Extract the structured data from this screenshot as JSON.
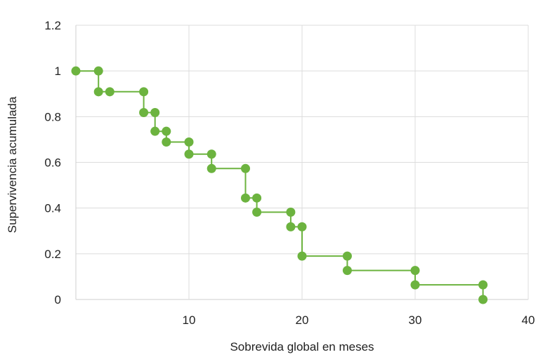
{
  "chart_data": {
    "type": "line",
    "subtype": "kaplan-meier-step",
    "title": "",
    "xlabel": "Sobrevida global en meses",
    "ylabel": "Supervivencia acumulada",
    "xlim": [
      0,
      40
    ],
    "ylim": [
      0,
      1.2
    ],
    "x_ticks": [
      10,
      20,
      30,
      40
    ],
    "x_tick_labels": [
      "10",
      "20",
      "30",
      "40"
    ],
    "y_ticks": [
      0,
      0.2,
      0.4,
      0.6,
      0.8,
      1,
      1.2
    ],
    "y_tick_labels": [
      "0",
      "0.2",
      "0.4",
      "0.6",
      "0.8",
      "1",
      "1.2"
    ],
    "grid": true,
    "legend": "none",
    "color": "#6cb33f",
    "series": [
      {
        "step_points": [
          [
            0,
            1.0
          ],
          [
            2,
            1.0
          ],
          [
            2,
            0.909
          ],
          [
            3,
            0.909
          ],
          [
            6,
            0.909
          ],
          [
            6,
            0.818
          ],
          [
            7,
            0.818
          ],
          [
            7,
            0.736
          ],
          [
            8,
            0.736
          ],
          [
            8,
            0.689
          ],
          [
            10,
            0.689
          ],
          [
            10,
            0.636
          ],
          [
            12,
            0.636
          ],
          [
            12,
            0.573
          ],
          [
            15,
            0.573
          ],
          [
            15,
            0.444
          ],
          [
            16,
            0.444
          ],
          [
            16,
            0.382
          ],
          [
            19,
            0.382
          ],
          [
            19,
            0.318
          ],
          [
            20,
            0.318
          ],
          [
            20,
            0.19
          ],
          [
            24,
            0.19
          ],
          [
            24,
            0.127
          ],
          [
            30,
            0.127
          ],
          [
            30,
            0.064
          ],
          [
            36,
            0.064
          ],
          [
            36,
            0.0
          ]
        ]
      }
    ]
  }
}
